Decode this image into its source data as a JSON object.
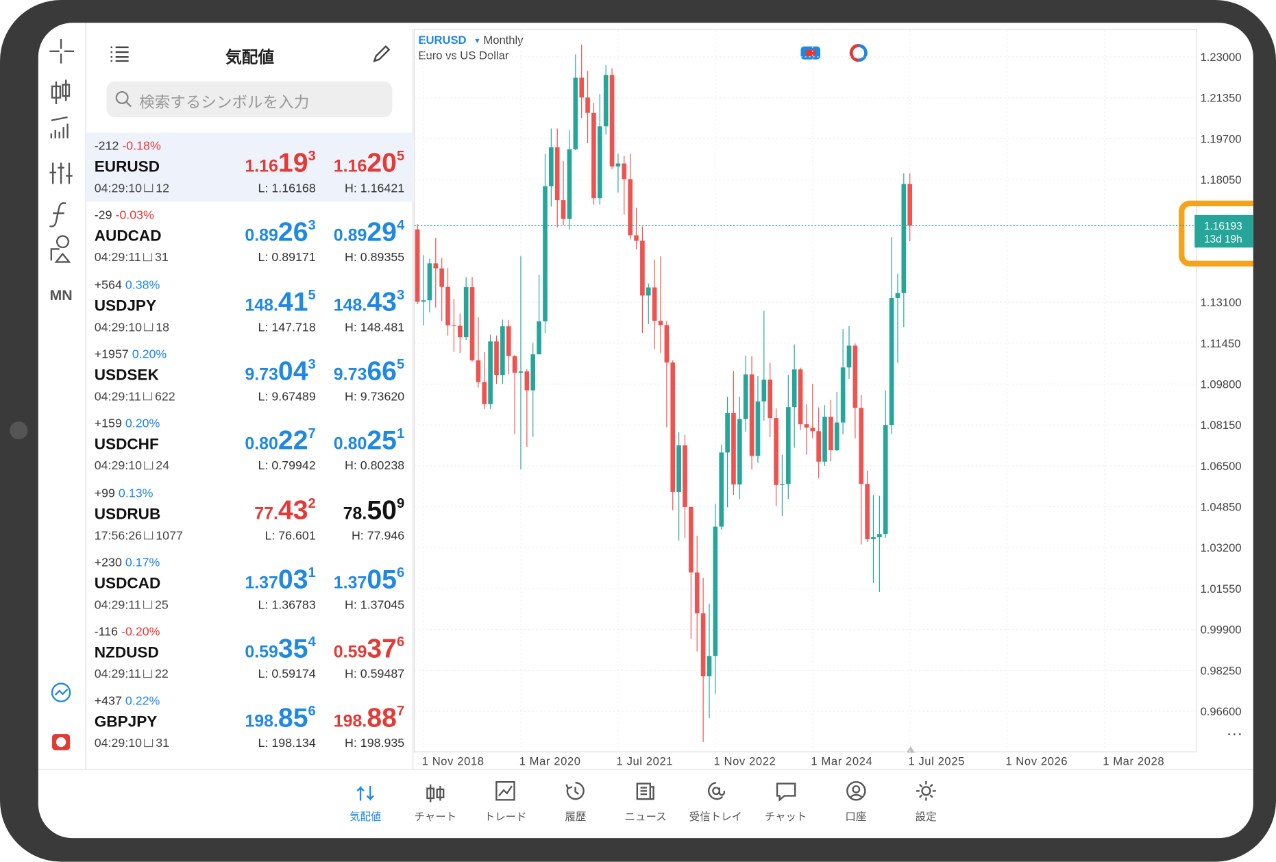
{
  "sidebar": {
    "mn": "MN"
  },
  "quotes": {
    "title": "気配値",
    "search_placeholder": "検索するシンボルを入力",
    "rows": [
      {
        "change": "-212",
        "change_pct": "-0.18%",
        "pct_color": "#e53935",
        "symbol": "EURUSD",
        "time": "04:29:10",
        "spread": 12,
        "bid": 1.16193,
        "bid_color": "#e53935",
        "ask": 1.16205,
        "ask_color": "#e53935",
        "low": "L: 1.16168",
        "high": "H: 1.16421"
      },
      {
        "change": "-29",
        "change_pct": "-0.03%",
        "pct_color": "#e53935",
        "symbol": "AUDCAD",
        "time": "04:29:11",
        "spread": 31,
        "bid": 0.89263,
        "bid_color": "#1e88e5",
        "ask": 0.89294,
        "ask_color": "#1e88e5",
        "low": "L: 0.89171",
        "high": "H: 0.89355"
      },
      {
        "change": "+564",
        "change_pct": "0.38%",
        "pct_color": "#1e88e5",
        "symbol": "USDJPY",
        "time": "04:29:10",
        "spread": 18,
        "bid": 148.415,
        "bid_color": "#1e88e5",
        "ask": 148.433,
        "ask_color": "#1e88e5",
        "low": "L: 147.718",
        "high": "H: 148.481"
      },
      {
        "change": "+1957",
        "change_pct": "0.20%",
        "pct_color": "#1e88e5",
        "symbol": "USDSEK",
        "time": "04:29:11",
        "spread": 622,
        "bid": 9.73043,
        "bid_color": "#1e88e5",
        "ask": 9.73665,
        "ask_color": "#1e88e5",
        "low": "L: 9.67489",
        "high": "H: 9.73620"
      },
      {
        "change": "+159",
        "change_pct": "0.20%",
        "pct_color": "#1e88e5",
        "symbol": "USDCHF",
        "time": "04:29:10",
        "spread": 24,
        "bid": 0.80227,
        "bid_color": "#1e88e5",
        "ask": 0.80251,
        "ask_color": "#1e88e5",
        "low": "L: 0.79942",
        "high": "H: 0.80238"
      },
      {
        "change": "+99",
        "change_pct": "0.13%",
        "pct_color": "#1e88e5",
        "symbol": "USDRUB",
        "time": "17:56:26",
        "spread": 1077,
        "bid": 77.432,
        "bid_color": "#e53935",
        "ask": 78.509,
        "ask_color": "#111111",
        "low": "L: 76.601",
        "high": "H: 77.946"
      },
      {
        "change": "+230",
        "change_pct": "0.17%",
        "pct_color": "#1e88e5",
        "symbol": "USDCAD",
        "time": "04:29:11",
        "spread": 25,
        "bid": 1.37031,
        "bid_color": "#1e88e5",
        "ask": 1.37056,
        "ask_color": "#1e88e5",
        "low": "L: 1.36783",
        "high": "H: 1.37045"
      },
      {
        "change": "-116",
        "change_pct": "-0.20%",
        "pct_color": "#e53935",
        "symbol": "NZDUSD",
        "time": "04:29:11",
        "spread": 22,
        "bid": 0.59354,
        "bid_color": "#1e88e5",
        "ask": 0.59376,
        "ask_color": "#e53935",
        "low": "L: 0.59174",
        "high": "H: 0.59487"
      },
      {
        "change": "+437",
        "change_pct": "0.22%",
        "pct_color": "#1e88e5",
        "symbol": "GBPJPY",
        "time": "04:29:10",
        "spread": 31,
        "bid": 198.856,
        "bid_color": "#1e88e5",
        "ask": 198.887,
        "ask_color": "#e53935",
        "low": "L: 198.134",
        "high": "H: 198.935"
      }
    ]
  },
  "chart": {
    "type": "candlestick",
    "symbol": "EURUSD",
    "timeframe": "Monthly",
    "description": "Euro vs US Dollar",
    "open": [
      1.1604,
      1.1312,
      1.1318,
      1.1467,
      1.1447,
      1.1372,
      1.1217,
      1.1215,
      1.1169,
      1.1371,
      1.1076,
      1.0988,
      1.0899,
      1.1152,
      1.1017,
      1.1213,
      1.1093,
      1.1026,
      1.1031,
      1.0955,
      1.11,
      1.1233,
      1.1778,
      1.1935,
      1.1722,
      1.1646,
      1.1927,
      1.2216,
      1.2136,
      1.2074,
      1.173,
      1.202,
      1.2227,
      1.1858,
      1.187,
      1.1807,
      1.158,
      1.1558,
      1.1337,
      1.137,
      1.1235,
      1.1218,
      1.1067,
      1.0545,
      1.0733,
      1.0484,
      1.022,
      1.0055,
      0.9801,
      0.9883,
      1.0405,
      1.0704,
      1.0863,
      1.0575,
      1.0839,
      1.1019,
      1.069,
      1.091,
      1.0998,
      1.0843,
      1.0573,
      1.0577,
      1.0887,
      1.1039,
      1.0818,
      1.0804,
      1.079,
      1.0667,
      1.0848,
      1.0713,
      1.0825,
      1.1047,
      1.1135,
      1.0884,
      1.0577,
      1.0354,
      1.0362,
      1.0375,
      1.0815,
      1.1327,
      1.1347,
      1.1787
    ],
    "high": [
      1.1625,
      1.15,
      1.1486,
      1.157,
      1.1488,
      1.1448,
      1.1324,
      1.1265,
      1.1412,
      1.1412,
      1.125,
      1.1109,
      1.1179,
      1.1176,
      1.124,
      1.1239,
      1.1097,
      1.1496,
      1.104,
      1.1146,
      1.1422,
      1.1909,
      1.2011,
      1.2011,
      1.188,
      1.2004,
      1.231,
      1.2349,
      1.2243,
      1.2114,
      1.215,
      1.2266,
      1.2254,
      1.1909,
      1.19,
      1.1909,
      1.1692,
      1.1616,
      1.1386,
      1.1482,
      1.1495,
      1.1233,
      1.1076,
      1.0786,
      1.0774,
      1.0486,
      1.0368,
      1.0198,
      1.0094,
      1.0497,
      1.0736,
      1.0929,
      1.1033,
      1.093,
      1.1095,
      1.1092,
      1.1012,
      1.1276,
      1.1065,
      1.0882,
      1.0695,
      1.1017,
      1.114,
      1.1046,
      1.0898,
      1.0981,
      1.0886,
      1.0895,
      1.0916,
      1.0948,
      1.1202,
      1.1214,
      1.1144,
      1.0937,
      1.063,
      1.0533,
      1.0529,
      1.0955,
      1.1573,
      1.1424,
      1.183,
      1.183
    ],
    "low": [
      1.1302,
      1.1216,
      1.1269,
      1.1289,
      1.1234,
      1.1176,
      1.111,
      1.1105,
      1.1158,
      1.1071,
      1.0966,
      1.0879,
      1.0879,
      1.0981,
      1.0981,
      1.1019,
      1.0778,
      1.0636,
      1.0727,
      1.0767,
      1.11,
      1.1186,
      1.1696,
      1.1612,
      1.1622,
      1.1603,
      1.1924,
      1.2054,
      1.1952,
      1.1704,
      1.1704,
      1.1986,
      1.1847,
      1.1752,
      1.1664,
      1.1563,
      1.1524,
      1.1186,
      1.1222,
      1.1121,
      1.1106,
      1.0806,
      1.0471,
      1.0349,
      1.0359,
      0.9952,
      0.9901,
      0.9536,
      0.9632,
      0.973,
      1.0393,
      1.0483,
      1.0533,
      1.0516,
      1.0788,
      1.0635,
      1.0662,
      1.0833,
      1.0766,
      1.0488,
      1.0448,
      1.0517,
      1.0723,
      1.0795,
      1.0695,
      1.0762,
      1.0601,
      1.065,
      1.0668,
      1.0709,
      1.0778,
      1.1001,
      1.0761,
      1.0333,
      1.0343,
      1.0178,
      1.0141,
      1.036,
      1.0778,
      1.1065,
      1.121,
      1.1556
    ],
    "close": [
      1.1312,
      1.1318,
      1.1467,
      1.1447,
      1.1372,
      1.1217,
      1.1215,
      1.1169,
      1.1371,
      1.1076,
      1.0988,
      1.0899,
      1.1152,
      1.1017,
      1.1213,
      1.1093,
      1.1026,
      1.1031,
      1.0955,
      1.11,
      1.1233,
      1.1778,
      1.1935,
      1.1722,
      1.1646,
      1.1927,
      1.2216,
      1.2136,
      1.2074,
      1.173,
      1.202,
      1.2227,
      1.1858,
      1.187,
      1.1807,
      1.158,
      1.1558,
      1.1337,
      1.137,
      1.1235,
      1.1218,
      1.1067,
      1.0545,
      1.0733,
      1.0484,
      1.022,
      1.0055,
      0.9801,
      0.9883,
      1.0405,
      1.0704,
      1.0863,
      1.0575,
      1.0839,
      1.1019,
      1.069,
      1.091,
      1.0998,
      1.0843,
      1.0573,
      1.0577,
      1.0887,
      1.1039,
      1.0818,
      1.0804,
      1.079,
      1.0667,
      1.0848,
      1.0713,
      1.0825,
      1.1047,
      1.1135,
      1.0884,
      1.0577,
      1.0354,
      1.0362,
      1.0375,
      1.0815,
      1.1327,
      1.1347,
      1.1787,
      1.16193
    ],
    "ylim": [
      0.9493,
      1.2408
    ],
    "yticks": [
      {
        "value": 1.23,
        "label": "1.23000"
      },
      {
        "value": 1.2135,
        "label": "1.21350"
      },
      {
        "value": 1.197,
        "label": "1.19700"
      },
      {
        "value": 1.1805,
        "label": "1.18050"
      },
      {
        "value": 1.131,
        "label": "1.13100"
      },
      {
        "value": 1.1145,
        "label": "1.11450"
      },
      {
        "value": 1.098,
        "label": "1.09800"
      },
      {
        "value": 1.0815,
        "label": "1.08150"
      },
      {
        "value": 1.065,
        "label": "1.06500"
      },
      {
        "value": 1.0485,
        "label": "1.04850"
      },
      {
        "value": 1.032,
        "label": "1.03200"
      },
      {
        "value": 1.0155,
        "label": "1.01550"
      },
      {
        "value": 0.999,
        "label": "0.99900"
      },
      {
        "value": 0.9825,
        "label": "0.98250"
      },
      {
        "value": 0.966,
        "label": "0.96600"
      }
    ],
    "x_labels": [
      "1 Nov 2018",
      "1 Mar 2020",
      "1 Jul 2021",
      "1 Nov 2022",
      "1 Mar 2024",
      "1 Jul 2025",
      "1 Nov 2026",
      "1 Mar 2028"
    ],
    "current_price": 1.16193,
    "countdown": "13d 19h",
    "up_color": "#26a69a",
    "down_color": "#ef5350",
    "grid": true
  },
  "tabs": [
    "気配値",
    "チャート",
    "トレード",
    "履歴",
    "ニュース",
    "受信トレイ",
    "チャット",
    "口座",
    "設定"
  ]
}
